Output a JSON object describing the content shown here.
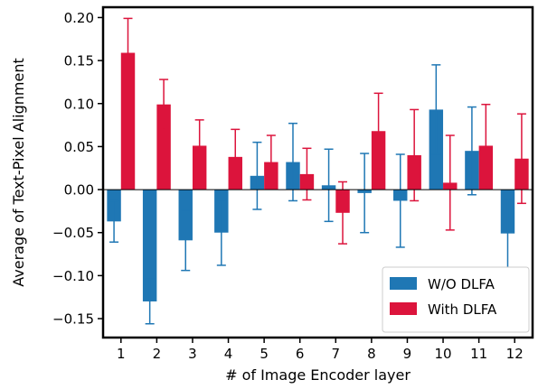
{
  "chart_data": {
    "type": "bar",
    "title": "",
    "xlabel": "# of Image Encoder layer",
    "ylabel": "Average of Text-Pixel Alignment",
    "categories": [
      "1",
      "2",
      "3",
      "4",
      "5",
      "6",
      "7",
      "8",
      "9",
      "10",
      "11",
      "12"
    ],
    "ylim": [
      -0.172,
      0.212
    ],
    "yticks": [
      0.2,
      0.15,
      0.1,
      0.05,
      0.0,
      -0.05,
      -0.1,
      -0.15
    ],
    "ytick_labels": [
      "0.20",
      "0.15",
      "0.10",
      "0.05",
      "0.00",
      "−0.05",
      "−0.10",
      "−0.15"
    ],
    "grid": false,
    "legend_position": "bottom-right",
    "series": [
      {
        "name": "W/O DLFA",
        "color": "#1f77b4",
        "values": [
          -0.037,
          -0.13,
          -0.059,
          -0.05,
          0.016,
          0.032,
          0.005,
          -0.004,
          -0.013,
          0.093,
          0.045,
          -0.051
        ],
        "errors": [
          0.024,
          0.026,
          0.035,
          0.038,
          0.039,
          0.045,
          0.042,
          0.046,
          0.054,
          0.052,
          0.051,
          0.04
        ]
      },
      {
        "name": "With DLFA",
        "color": "#dc143c",
        "values": [
          0.159,
          0.099,
          0.051,
          0.038,
          0.032,
          0.018,
          -0.027,
          0.068,
          0.04,
          0.008,
          0.051,
          0.036
        ],
        "errors": [
          0.04,
          0.029,
          0.03,
          0.032,
          0.031,
          0.03,
          0.036,
          0.044,
          0.053,
          0.055,
          0.048,
          0.052
        ]
      }
    ]
  }
}
